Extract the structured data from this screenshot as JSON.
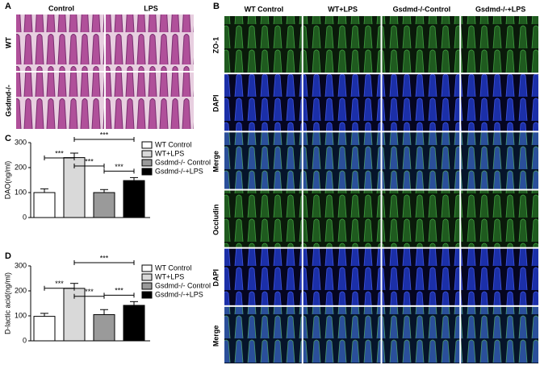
{
  "panel_a": {
    "label": "A",
    "columns": [
      "Control",
      "LPS"
    ],
    "rows": [
      "WT",
      "Gsdmd-/-"
    ]
  },
  "panel_b": {
    "label": "B",
    "columns": [
      "WT Control",
      "WT+LPS",
      "Gsdmd-/-Control",
      "Gsdmd-/-+LPS"
    ],
    "rows": [
      "ZO-1",
      "DAPI",
      "Merge",
      "Occludin",
      "DAPI",
      "Merge"
    ]
  },
  "chart_data": [
    {
      "type": "bar",
      "label": "C",
      "ylabel": "DAO(ng/ml)",
      "categories": [
        "WT Control",
        "WT+LPS",
        "Gsdmd-/- Control",
        "Gsdmd-/-+LPS"
      ],
      "values": [
        100,
        240,
        100,
        148
      ],
      "errors": [
        15,
        18,
        12,
        12
      ],
      "colors": [
        "#ffffff",
        "#d9d9d9",
        "#9a9a9a",
        "#000000"
      ],
      "ylim": [
        0,
        300
      ],
      "yticks": [
        0,
        100,
        200,
        300
      ],
      "annotations": [
        "***",
        "***",
        "***",
        "***"
      ]
    },
    {
      "type": "bar",
      "label": "D",
      "ylabel": "D-lactic acid(ng/ml)",
      "categories": [
        "WT Control",
        "WT+LPS",
        "Gsdmd-/- Control",
        "Gsdmd-/-+LPS"
      ],
      "values": [
        98,
        210,
        105,
        142
      ],
      "errors": [
        12,
        20,
        20,
        15
      ],
      "colors": [
        "#ffffff",
        "#d9d9d9",
        "#9a9a9a",
        "#000000"
      ],
      "ylim": [
        0,
        300
      ],
      "yticks": [
        0,
        100,
        200,
        300
      ],
      "annotations": [
        "***",
        "***",
        "***",
        "***"
      ]
    }
  ]
}
